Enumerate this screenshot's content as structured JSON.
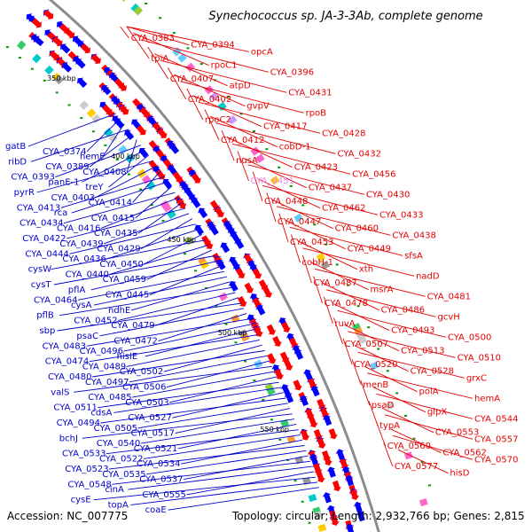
{
  "title": "Synechococcus sp. JA-3-3Ab, complete genome",
  "accession": "Accession: NC_007775",
  "summary": "Topology: circular; Length: 2,932,766 bp; Genes: 2,815",
  "colors": {
    "backbone": "#8c8c8c",
    "forward_label": "#e60000",
    "reverse_label": "#0000cc",
    "highlight_label": "#ee88ee",
    "forward_arrow": "#ff0000",
    "reverse_arrow": "#0000ff",
    "tick": "#009900"
  },
  "kbp_marks": [
    "350 kbp",
    "400 kbp",
    "450 kbp",
    "500 kbp",
    "550 kbp"
  ],
  "reverse_labels": [
    "gatB",
    "CYA_0374",
    "hemE",
    "ribD",
    "CYA_0389",
    "CYA_0408",
    "CYA_0393",
    "panE-1",
    "treY",
    "pyrR",
    "CYA_0403",
    "CYA_0414",
    "CYA_0413",
    "rca",
    "CYA_0415",
    "CYA_0434",
    "CYA_0416",
    "CYA_0435",
    "CYA_0422",
    "CYA_0439",
    "CYA_0429",
    "CYA_0444",
    "CYA_0436",
    "CYA_0450",
    "cysW",
    "CYA_0440",
    "CYA_0459",
    "cysT",
    "pflA",
    "CYA_0445",
    "CYA_0464",
    "cysA",
    "ndhE",
    "pflB",
    "CYA_0452",
    "CYA_0479",
    "sbp",
    "psaC",
    "CYA_0472",
    "CYA_0483",
    "CYA_0496",
    "hisIE",
    "CYA_0474",
    "CYA_0489",
    "CYA_0502",
    "CYA_0480",
    "CYA_0497",
    "CYA_0506",
    "valS",
    "CYA_0485",
    "CYA_0503",
    "CYA_0511",
    "cdsA",
    "CYA_0527",
    "CYA_0494",
    "CYA_0505",
    "CYA_0517",
    "bchJ",
    "CYA_0540",
    "CYA_0521",
    "CYA_0533",
    "CYA_0522",
    "CYA_0534",
    "CYA_0523",
    "CYA_0535",
    "CYA_0537",
    "CYA_0548",
    "cinA",
    "CYA_0555",
    "cysE",
    "topA",
    "coaE"
  ],
  "forward_labels": [
    "CYA_0383",
    "CYA_0394",
    "opcA",
    "tpiA",
    "rpoC1",
    "CYA_0396",
    "CYA_0407",
    "atpD",
    "CYA_0431",
    "CYA_0402",
    "gvpV",
    "rpoB",
    "rpoC2",
    "CYA_0417",
    "CYA_0428",
    "CYA_0412",
    "cobD-1",
    "CYA_0432",
    "nusA",
    "CYA_0423",
    "CYA_0456",
    "CYA_0451",
    "CYA_0437",
    "CYA_0430",
    "CYA_0448",
    "CYA_0462",
    "CYA_0433",
    "CYA_0447",
    "CYA_0460",
    "CYA_0438",
    "CYA_0453",
    "CYA_0449",
    "sfsA",
    "cobH-1",
    "xth",
    "nadD",
    "CYA_0487",
    "msrA",
    "CYA_0481",
    "CYA_0478",
    "CYA_0486",
    "gcvH",
    "ruvA",
    "CYA_0493",
    "CYA_0500",
    "CYA_0507",
    "CYA_0513",
    "CYA_0510",
    "CYA_0520",
    "CYA_0528",
    "grxC",
    "menB",
    "polA",
    "hemA",
    "psaD",
    "glpX",
    "CYA_0544",
    "typA",
    "CYA_0553",
    "CYA_0557",
    "CYA_0560",
    "CYA_0562",
    "CYA_0570",
    "CYA_0577",
    "hisD"
  ],
  "highlighted_label": "CYA_0451"
}
